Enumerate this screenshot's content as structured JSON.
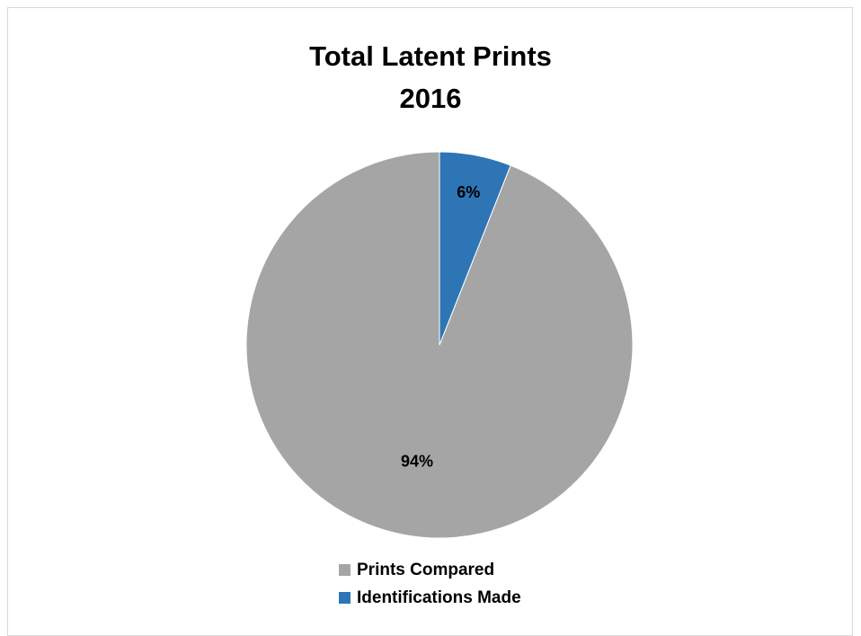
{
  "chart_data": {
    "type": "pie",
    "title": [
      "Total Latent Prints",
      "2016"
    ],
    "slices": [
      {
        "label": "Prints Compared",
        "value": 94,
        "value_label": "94%",
        "color": "#a5a5a5"
      },
      {
        "label": "Identifications Made",
        "value": 6,
        "value_label": "6%",
        "color": "#2e75b6"
      }
    ],
    "start_angle_deg": 0,
    "direction": "counterclockwise",
    "legend_position": "bottom"
  }
}
